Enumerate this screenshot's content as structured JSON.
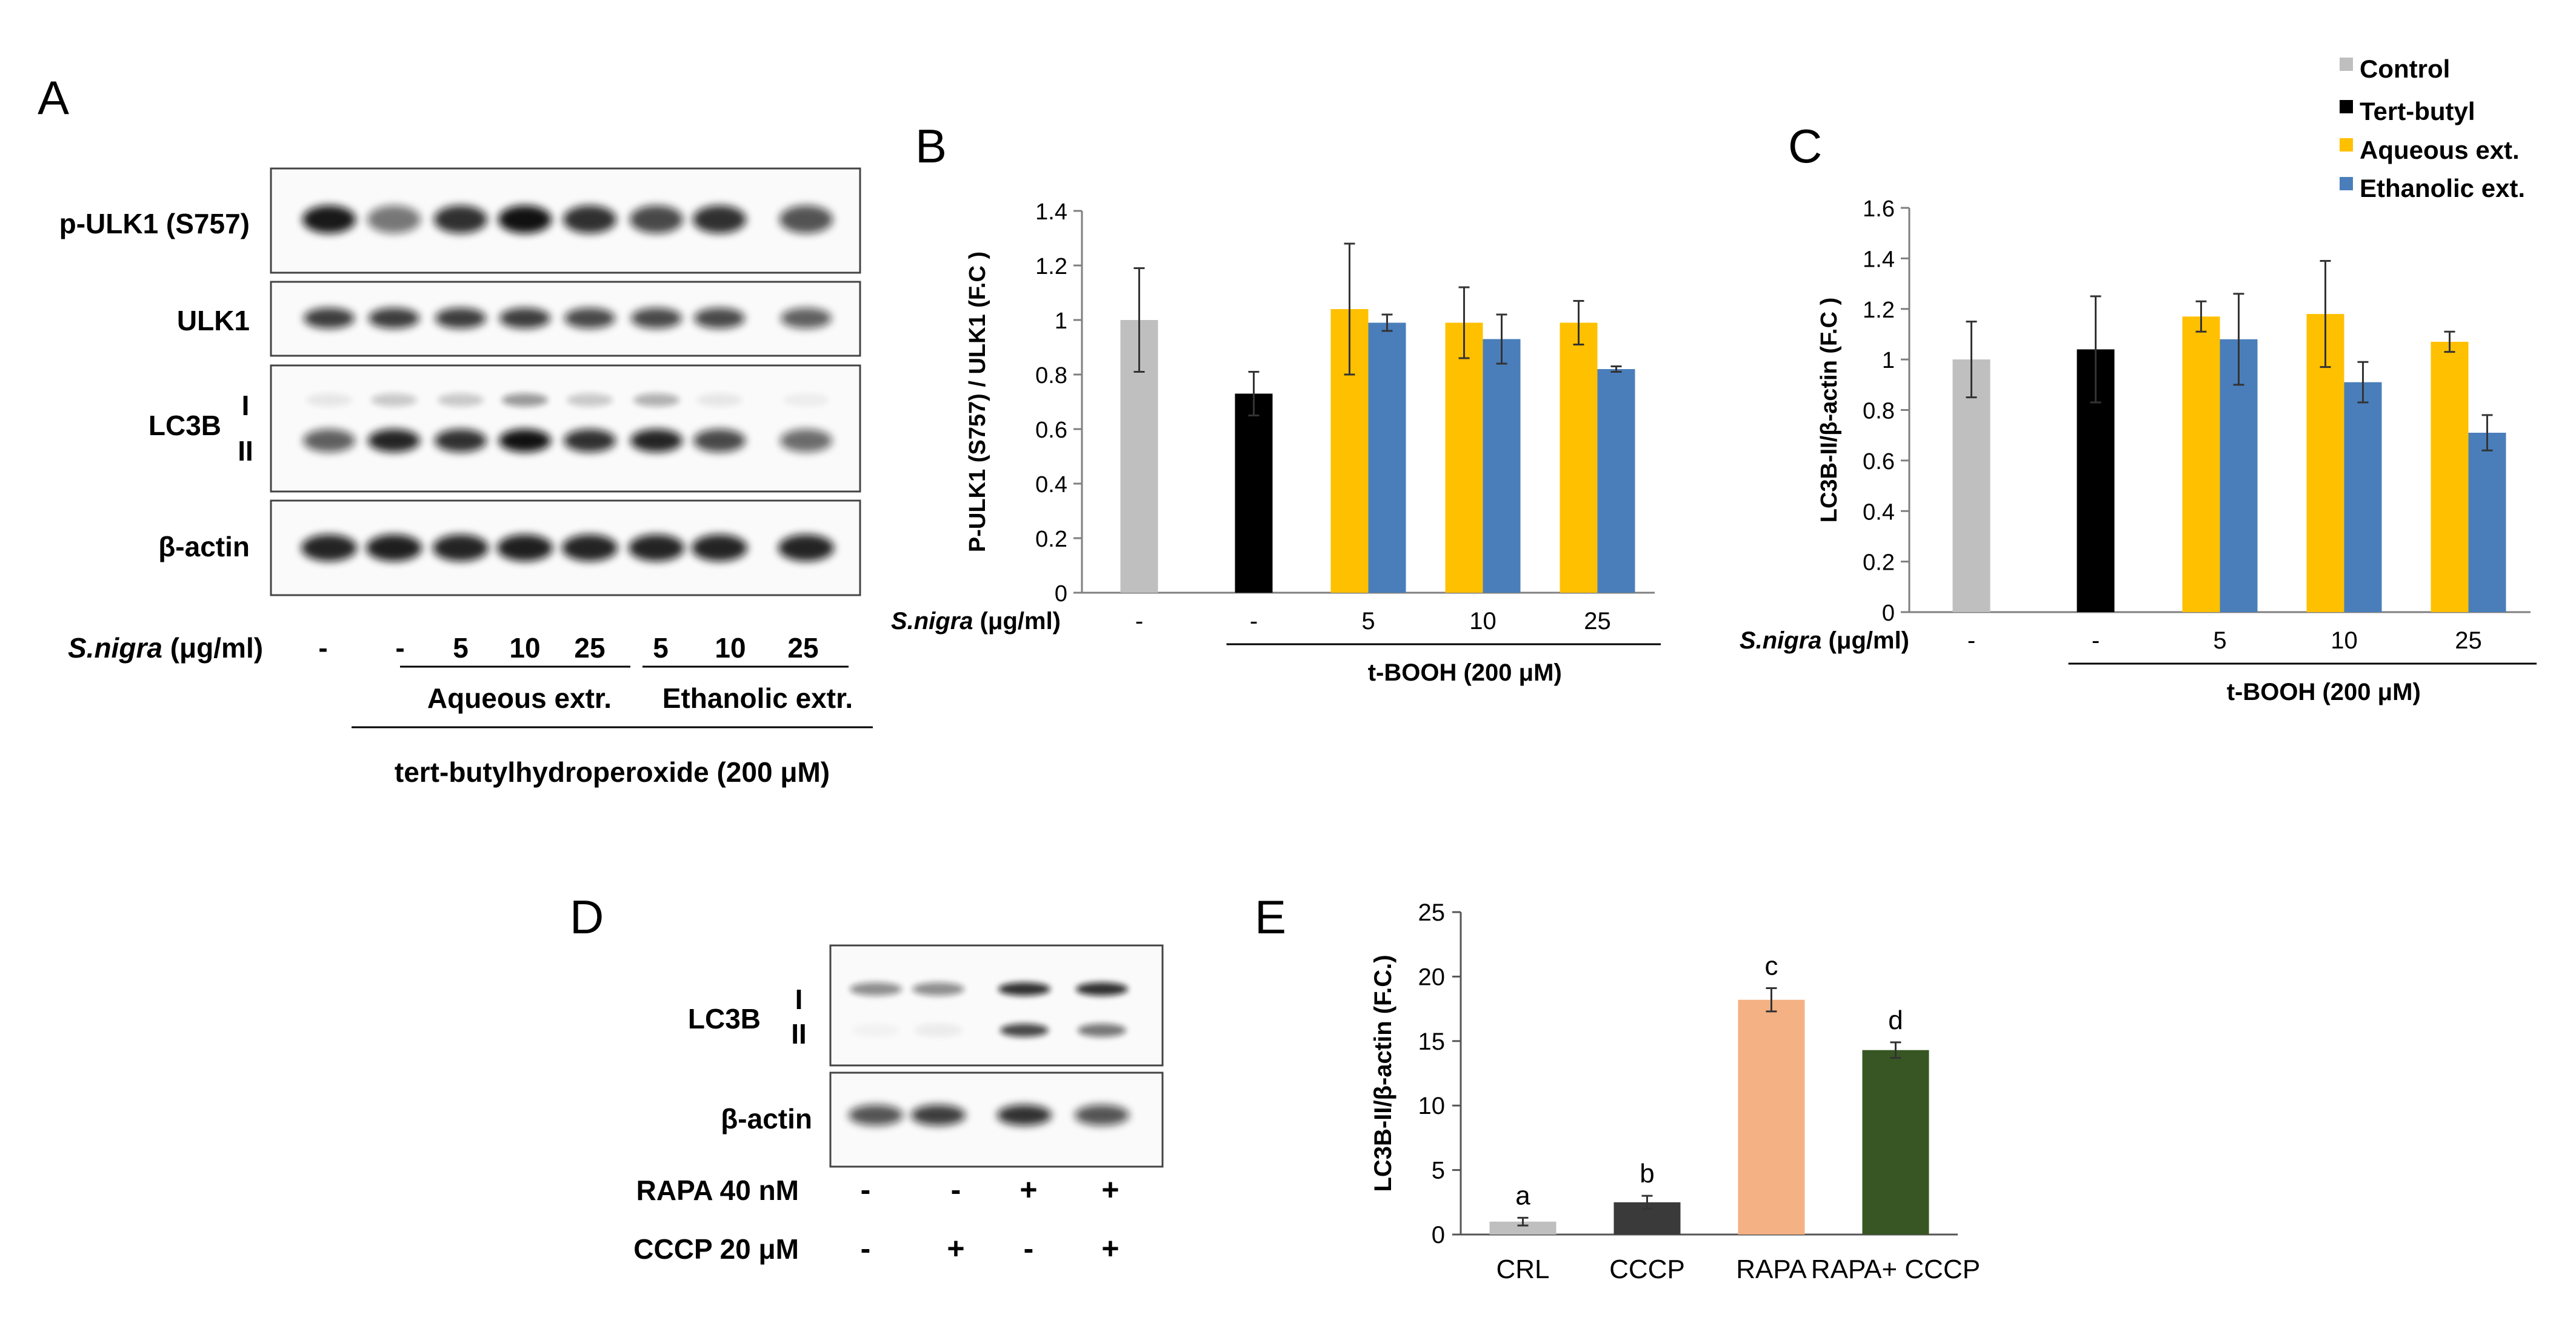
{
  "panels": {
    "A": "A",
    "B": "B",
    "C": "C",
    "D": "D",
    "E": "E"
  },
  "legend": {
    "items": [
      {
        "label": "Control",
        "color": "#bfbfbf"
      },
      {
        "label": "Tert-butyl",
        "color": "#000000"
      },
      {
        "label": "Aqueous ext.",
        "color": "#ffc000"
      },
      {
        "label": "Ethanolic ext.",
        "color": "#4a7ebb"
      }
    ]
  },
  "blotA": {
    "rows": [
      "p-ULK1 (S757)",
      "ULK1",
      "LC3B",
      "β-actin"
    ],
    "band_I": "I",
    "band_II": "II",
    "snigra_label": "S.nigra",
    "snigra_unit": " (μg/ml)",
    "lanes": [
      "-",
      "-",
      "5",
      "10",
      "25",
      "5",
      "10",
      "25"
    ],
    "aqueous": "Aqueous extr.",
    "ethanolic": "Ethanolic extr.",
    "treatment": "tert-butylhydroperoxide  (200 μM)"
  },
  "blotD": {
    "rows": [
      "LC3B",
      "β-actin"
    ],
    "band_I": "I",
    "band_II": "II",
    "rapa_label": "RAPA 40 nM",
    "cccp_label": "CCCP 20 μM",
    "rapa": [
      "-",
      "-",
      "+",
      "+"
    ],
    "cccp": [
      "-",
      "+",
      "-",
      "+"
    ]
  },
  "chart_data": [
    {
      "panel": "B",
      "type": "bar",
      "ylabel": "P-ULK1 (S757) / ULK1 (F.C )",
      "ylim": [
        0,
        1.4
      ],
      "yticks": [
        "0",
        "0.2",
        "0.4",
        "0.6",
        "0.8",
        "1",
        "1.2",
        "1.4"
      ],
      "xlabel_prefix": "S.nigra",
      "xlabel_unit": " (μg/ml)",
      "categories": [
        "-",
        "-",
        "5",
        "10",
        "25"
      ],
      "treatment": "t-BOOH (200 μM)",
      "series": [
        {
          "name": "Control",
          "values": [
            1.0,
            null,
            null,
            null,
            null
          ],
          "errors": [
            0.19,
            null,
            null,
            null,
            null
          ]
        },
        {
          "name": "Tert-butyl",
          "values": [
            null,
            0.73,
            null,
            null,
            null
          ],
          "errors": [
            null,
            0.08,
            null,
            null,
            null
          ]
        },
        {
          "name": "Aqueous ext.",
          "values": [
            null,
            null,
            1.04,
            0.99,
            0.99
          ],
          "errors": [
            null,
            null,
            0.24,
            0.13,
            0.08
          ]
        },
        {
          "name": "Ethanolic ext.",
          "values": [
            null,
            null,
            0.99,
            0.93,
            0.82
          ],
          "errors": [
            null,
            null,
            0.03,
            0.09,
            0.01
          ]
        }
      ]
    },
    {
      "panel": "C",
      "type": "bar",
      "ylabel": "LC3B-II/β-actin (F.C )",
      "ylim": [
        0,
        1.6
      ],
      "yticks": [
        "0",
        "0.2",
        "0.4",
        "0.6",
        "0.8",
        "1",
        "1.2",
        "1.4",
        "1.6"
      ],
      "xlabel_prefix": "S.nigra",
      "xlabel_unit": " (μg/ml)",
      "categories": [
        "-",
        "-",
        "5",
        "10",
        "25"
      ],
      "treatment": "t-BOOH (200 μM)",
      "series": [
        {
          "name": "Control",
          "values": [
            1.0,
            null,
            null,
            null,
            null
          ],
          "errors": [
            0.15,
            null,
            null,
            null,
            null
          ]
        },
        {
          "name": "Tert-butyl",
          "values": [
            null,
            1.04,
            null,
            null,
            null
          ],
          "errors": [
            null,
            0.21,
            null,
            null,
            null
          ]
        },
        {
          "name": "Aqueous ext.",
          "values": [
            null,
            null,
            1.17,
            1.18,
            1.07
          ],
          "errors": [
            null,
            null,
            0.06,
            0.21,
            0.04
          ]
        },
        {
          "name": "Ethanolic ext.",
          "values": [
            null,
            null,
            1.08,
            0.91,
            0.71
          ],
          "errors": [
            null,
            null,
            0.18,
            0.08,
            0.07
          ]
        }
      ]
    },
    {
      "panel": "E",
      "type": "bar",
      "ylabel": "LC3B-II/β-actin (F.C.)",
      "ylim": [
        0,
        25
      ],
      "yticks": [
        "0",
        "5",
        "10",
        "15",
        "20",
        "25"
      ],
      "categories": [
        "CRL",
        "CCCP",
        "RAPA",
        "RAPA+ CCCP"
      ],
      "values": [
        1.0,
        2.5,
        18.2,
        14.3
      ],
      "errors": [
        0.3,
        0.5,
        0.9,
        0.6
      ],
      "letters": [
        "a",
        "b",
        "c",
        "d"
      ],
      "colors": [
        "#bfbfbf",
        "#3a3a3a",
        "#f4b183",
        "#375623"
      ]
    }
  ]
}
